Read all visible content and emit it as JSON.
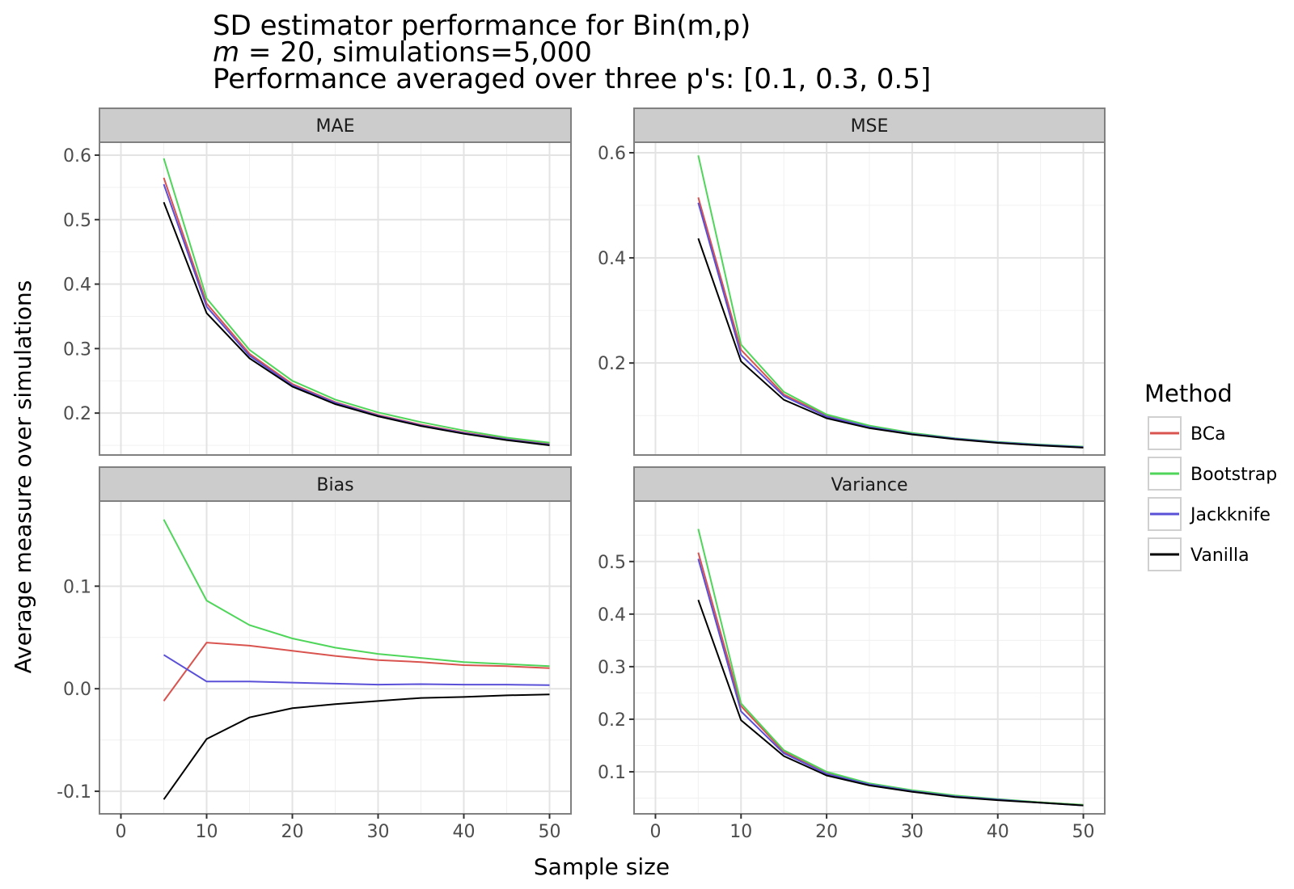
{
  "title": {
    "line1": "SD estimator performance for Bin(m,p)",
    "line2_var": "m",
    "line2_rest": " = 20, simulations=5,000",
    "line3": "Performance averaged over three p's: [0.1, 0.3, 0.5]"
  },
  "chart_data": {
    "type": "line",
    "xlabel": "Sample size",
    "ylabel": "Average measure over simulations",
    "legend": {
      "title": "Method",
      "placement": "right"
    },
    "x": [
      5,
      10,
      15,
      20,
      25,
      30,
      35,
      40,
      45,
      50
    ],
    "xlim": [
      0,
      50
    ],
    "x_ticks": [
      0,
      10,
      20,
      30,
      40,
      50
    ],
    "grid": true,
    "series_styles": [
      {
        "name": "BCa",
        "color": "#d9534f"
      },
      {
        "name": "Bootstrap",
        "color": "#4fd65a"
      },
      {
        "name": "Jackknife",
        "color": "#5a50d8"
      },
      {
        "name": "Vanilla",
        "color": "#000000"
      }
    ],
    "panels": [
      {
        "facet": "MAE",
        "ylim": [
          0.135,
          0.62
        ],
        "y_ticks": [
          0.2,
          0.3,
          0.4,
          0.5,
          0.6
        ],
        "series": [
          {
            "name": "BCa",
            "values": [
              0.565,
              0.37,
              0.292,
              0.245,
              0.217,
              0.197,
              0.182,
              0.17,
              0.16,
              0.152
            ]
          },
          {
            "name": "Bootstrap",
            "values": [
              0.595,
              0.378,
              0.298,
              0.25,
              0.221,
              0.201,
              0.186,
              0.173,
              0.162,
              0.154
            ]
          },
          {
            "name": "Jackknife",
            "values": [
              0.555,
              0.365,
              0.289,
              0.243,
              0.216,
              0.196,
              0.181,
              0.169,
              0.159,
              0.151
            ]
          },
          {
            "name": "Vanilla",
            "values": [
              0.527,
              0.355,
              0.285,
              0.241,
              0.214,
              0.195,
              0.18,
              0.168,
              0.158,
              0.15
            ]
          }
        ]
      },
      {
        "facet": "MSE",
        "ylim": [
          0.025,
          0.62
        ],
        "y_ticks": [
          0.2,
          0.4,
          0.6
        ],
        "series": [
          {
            "name": "BCa",
            "values": [
              0.515,
              0.225,
              0.14,
              0.1,
              0.079,
              0.066,
              0.056,
              0.049,
              0.044,
              0.04
            ]
          },
          {
            "name": "Bootstrap",
            "values": [
              0.595,
              0.235,
              0.145,
              0.102,
              0.081,
              0.067,
              0.057,
              0.05,
              0.045,
              0.041
            ]
          },
          {
            "name": "Jackknife",
            "values": [
              0.505,
              0.215,
              0.137,
              0.098,
              0.078,
              0.065,
              0.056,
              0.049,
              0.044,
              0.04
            ]
          },
          {
            "name": "Vanilla",
            "values": [
              0.437,
              0.203,
              0.13,
              0.095,
              0.076,
              0.064,
              0.055,
              0.048,
              0.043,
              0.039
            ]
          }
        ]
      },
      {
        "facet": "Bias",
        "ylim": [
          -0.122,
          0.183
        ],
        "y_ticks": [
          -0.1,
          0.0,
          0.1
        ],
        "y_tick_labels": [
          "-0.1",
          "0.0",
          "0.1"
        ],
        "series": [
          {
            "name": "BCa",
            "values": [
              -0.012,
              0.045,
              0.042,
              0.037,
              0.032,
              0.028,
              0.026,
              0.023,
              0.022,
              0.02
            ]
          },
          {
            "name": "Bootstrap",
            "values": [
              0.165,
              0.086,
              0.062,
              0.049,
              0.04,
              0.034,
              0.03,
              0.026,
              0.024,
              0.022
            ]
          },
          {
            "name": "Jackknife",
            "values": [
              0.033,
              0.007,
              0.007,
              0.006,
              0.005,
              0.004,
              0.0045,
              0.004,
              0.004,
              0.0035
            ]
          },
          {
            "name": "Vanilla",
            "values": [
              -0.108,
              -0.049,
              -0.028,
              -0.019,
              -0.015,
              -0.012,
              -0.009,
              -0.008,
              -0.0065,
              -0.0055
            ]
          }
        ]
      },
      {
        "facet": "Variance",
        "ylim": [
          0.02,
          0.615
        ],
        "y_ticks": [
          0.1,
          0.2,
          0.3,
          0.4,
          0.5
        ],
        "series": [
          {
            "name": "BCa",
            "values": [
              0.517,
              0.225,
              0.138,
              0.098,
              0.077,
              0.064,
              0.054,
              0.047,
              0.042,
              0.037
            ]
          },
          {
            "name": "Bootstrap",
            "values": [
              0.562,
              0.23,
              0.141,
              0.1,
              0.078,
              0.065,
              0.055,
              0.048,
              0.042,
              0.037
            ]
          },
          {
            "name": "Jackknife",
            "values": [
              0.505,
              0.215,
              0.135,
              0.096,
              0.076,
              0.063,
              0.053,
              0.047,
              0.041,
              0.036
            ]
          },
          {
            "name": "Vanilla",
            "values": [
              0.427,
              0.198,
              0.13,
              0.093,
              0.074,
              0.062,
              0.052,
              0.046,
              0.041,
              0.036
            ]
          }
        ]
      }
    ]
  }
}
